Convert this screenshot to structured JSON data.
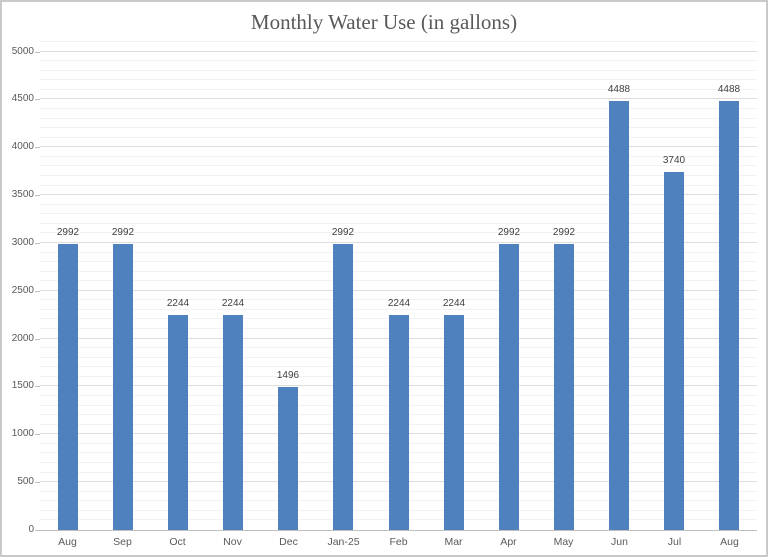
{
  "chart_data": {
    "type": "bar",
    "title": "Monthly Water Use (in gallons)",
    "categories": [
      "Aug",
      "Sep",
      "Oct",
      "Nov",
      "Dec",
      "Jan-25",
      "Feb",
      "Mar",
      "Apr",
      "May",
      "Jun",
      "Jul",
      "Aug"
    ],
    "values": [
      2992,
      2992,
      2244,
      2244,
      1496,
      2992,
      2244,
      2244,
      2992,
      2992,
      4488,
      3740,
      4488
    ],
    "data_labels": [
      "2992",
      "2992",
      "2244",
      "2244",
      "1496",
      "2992",
      "2244",
      "2244",
      "2992",
      "2992",
      "4488",
      "3740",
      "4488"
    ],
    "xlabel": "",
    "ylabel": "",
    "ylim": [
      0,
      5000
    ],
    "y_render_max": 5100,
    "y_major_step": 500,
    "y_minor_step": 100,
    "y_tick_labels": [
      "0",
      "500",
      "1000",
      "1500",
      "2000",
      "2500",
      "3000",
      "3500",
      "4000",
      "4500",
      "5000"
    ],
    "grid": "horizontal major and minor, no vertical",
    "legend": "none",
    "colors": {
      "bar": "#4e81bd",
      "title_text": "#595959",
      "axis_text": "#595959",
      "data_label_text": "#3f3f3f",
      "major_gridline": "#dedede",
      "minor_gridline": "#f1f1f6",
      "axis_line": "#bfbfbf",
      "frame_border": "#c9c9c9"
    }
  }
}
